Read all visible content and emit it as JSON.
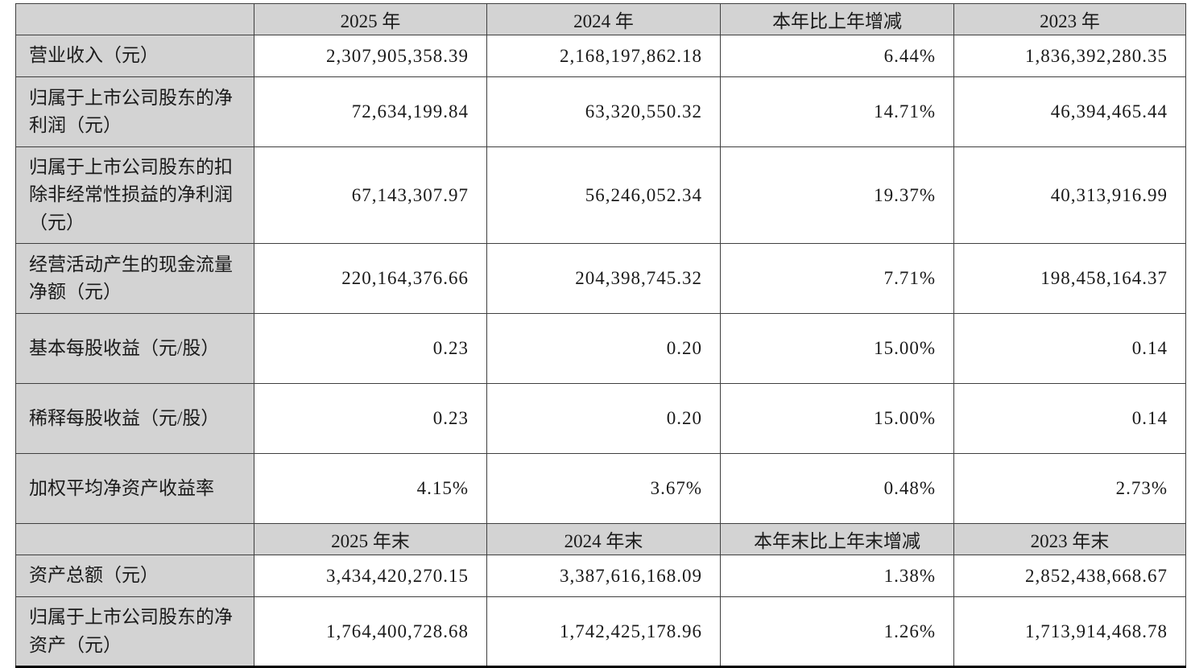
{
  "colors": {
    "header_background": "#d3d3d3",
    "label_column_background": "#d3d3d3",
    "grid_border": "#3f3f3f",
    "bottom_rule": "#000000",
    "cell_background": "#ffffff",
    "text": "#1a1a1a"
  },
  "table": {
    "header_row_1": {
      "corner": "",
      "cols": [
        "2025 年",
        "2024 年",
        "本年比上年增减",
        "2023 年"
      ]
    },
    "rows_1": [
      {
        "label": "营业收入（元）",
        "values": [
          "2,307,905,358.39",
          "2,168,197,862.18",
          "6.44%",
          "1,836,392,280.35"
        ]
      },
      {
        "label": "归属于上市公司股东的净利润（元）",
        "values": [
          "72,634,199.84",
          "63,320,550.32",
          "14.71%",
          "46,394,465.44"
        ]
      },
      {
        "label": "归属于上市公司股东的扣除非经常性损益的净利润（元）",
        "values": [
          "67,143,307.97",
          "56,246,052.34",
          "19.37%",
          "40,313,916.99"
        ]
      },
      {
        "label": "经营活动产生的现金流量净额（元）",
        "values": [
          "220,164,376.66",
          "204,398,745.32",
          "7.71%",
          "198,458,164.37"
        ]
      },
      {
        "label": "基本每股收益（元/股）",
        "values": [
          "0.23",
          "0.20",
          "15.00%",
          "0.14"
        ]
      },
      {
        "label": "稀释每股收益（元/股）",
        "values": [
          "0.23",
          "0.20",
          "15.00%",
          "0.14"
        ]
      },
      {
        "label": "加权平均净资产收益率",
        "values": [
          "4.15%",
          "3.67%",
          "0.48%",
          "2.73%"
        ]
      }
    ],
    "header_row_2": {
      "corner": "",
      "cols": [
        "2025 年末",
        "2024 年末",
        "本年末比上年末增减",
        "2023 年末"
      ]
    },
    "rows_2": [
      {
        "label": "资产总额（元）",
        "values": [
          "3,434,420,270.15",
          "3,387,616,168.09",
          "1.38%",
          "2,852,438,668.67"
        ]
      },
      {
        "label": "归属于上市公司股东的净资产（元）",
        "values": [
          "1,764,400,728.68",
          "1,742,425,178.96",
          "1.26%",
          "1,713,914,468.78"
        ]
      }
    ]
  }
}
